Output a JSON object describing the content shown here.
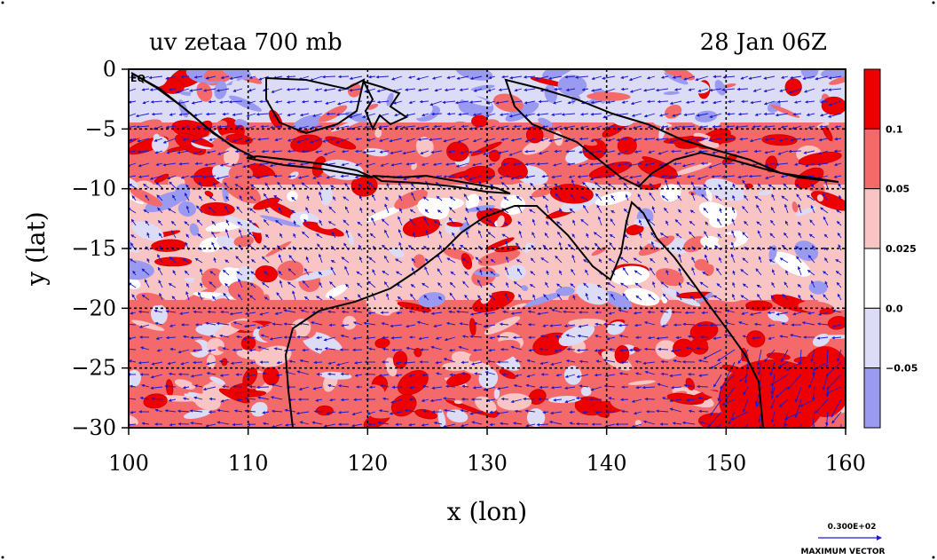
{
  "title_left": "uv zetaa 700 mb",
  "title_right": "28 Jan 06Z",
  "x_axis_label": "x (lon)",
  "y_axis_label": "y (lat)",
  "x_ticks": [
    "100",
    "110",
    "120",
    "130",
    "140",
    "150",
    "160"
  ],
  "y_ticks": [
    "0",
    "−5",
    "−10",
    "−15",
    "−20",
    "−25",
    "−30"
  ],
  "equator_label": "EQ",
  "colorbar_labels": [
    "0.1",
    "0.05",
    "0.025",
    "0.0",
    "−0.05"
  ],
  "colorbar_colors": [
    "#ee0000",
    "#f46a6a",
    "#f9c4c4",
    "#ffffff",
    "#dcdcf6",
    "#9a9af0"
  ],
  "vector_reference_value": "0.300E+02",
  "vector_reference_label": "MAXIMUM VECTOR",
  "colors": {
    "strong_positive": "#ee0000",
    "medium_positive": "#f46a6a",
    "weak_positive": "#f9c4c4",
    "weak_negative": "#dcdcf6",
    "strong_negative": "#9a9af0",
    "vectors": "#1a1acc",
    "coastline": "#000000"
  }
}
